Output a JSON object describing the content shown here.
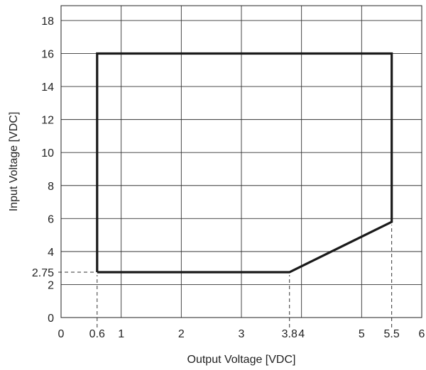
{
  "chart_data": {
    "type": "line",
    "xlabel": "Output Voltage [VDC]",
    "ylabel": "Input Voltage [VDC]",
    "xlim": [
      0,
      6
    ],
    "ylim": [
      0,
      18.9
    ],
    "grid": true,
    "x_ticks": [
      {
        "value": 0,
        "label": "0"
      },
      {
        "value": 0.6,
        "label": "0.6"
      },
      {
        "value": 1,
        "label": "1"
      },
      {
        "value": 2,
        "label": "2"
      },
      {
        "value": 3,
        "label": "3"
      },
      {
        "value": 3.8,
        "label": "3.8"
      },
      {
        "value": 4,
        "label": "4"
      },
      {
        "value": 5,
        "label": "5"
      },
      {
        "value": 5.5,
        "label": "5.5"
      },
      {
        "value": 6,
        "label": "6"
      }
    ],
    "y_ticks": [
      {
        "value": 0,
        "label": "0"
      },
      {
        "value": 2,
        "label": "2"
      },
      {
        "value": 2.75,
        "label": "2.75"
      },
      {
        "value": 4,
        "label": "4"
      },
      {
        "value": 6,
        "label": "6"
      },
      {
        "value": 8,
        "label": "8"
      },
      {
        "value": 10,
        "label": "10"
      },
      {
        "value": 12,
        "label": "12"
      },
      {
        "value": 14,
        "label": "14"
      },
      {
        "value": 16,
        "label": "16"
      },
      {
        "value": 18,
        "label": "18"
      }
    ],
    "grid_x": [
      1,
      2,
      3,
      4,
      5
    ],
    "grid_y": [
      2,
      4,
      6,
      8,
      10,
      12,
      14,
      16,
      18
    ],
    "operating_region": [
      [
        0.6,
        2.75
      ],
      [
        0.6,
        16
      ],
      [
        5.5,
        16
      ],
      [
        5.5,
        5.8
      ],
      [
        3.8,
        2.75
      ],
      [
        0.6,
        2.75
      ]
    ],
    "reference_lines": [
      {
        "axis": "x",
        "value": 0.6,
        "from": 0,
        "to": 2.75
      },
      {
        "axis": "x",
        "value": 3.8,
        "from": 0,
        "to": 2.75
      },
      {
        "axis": "x",
        "value": 5.5,
        "from": 0,
        "to": 5.8
      },
      {
        "axis": "y",
        "value": 2.75,
        "from": 0,
        "to": 0.6
      }
    ]
  }
}
